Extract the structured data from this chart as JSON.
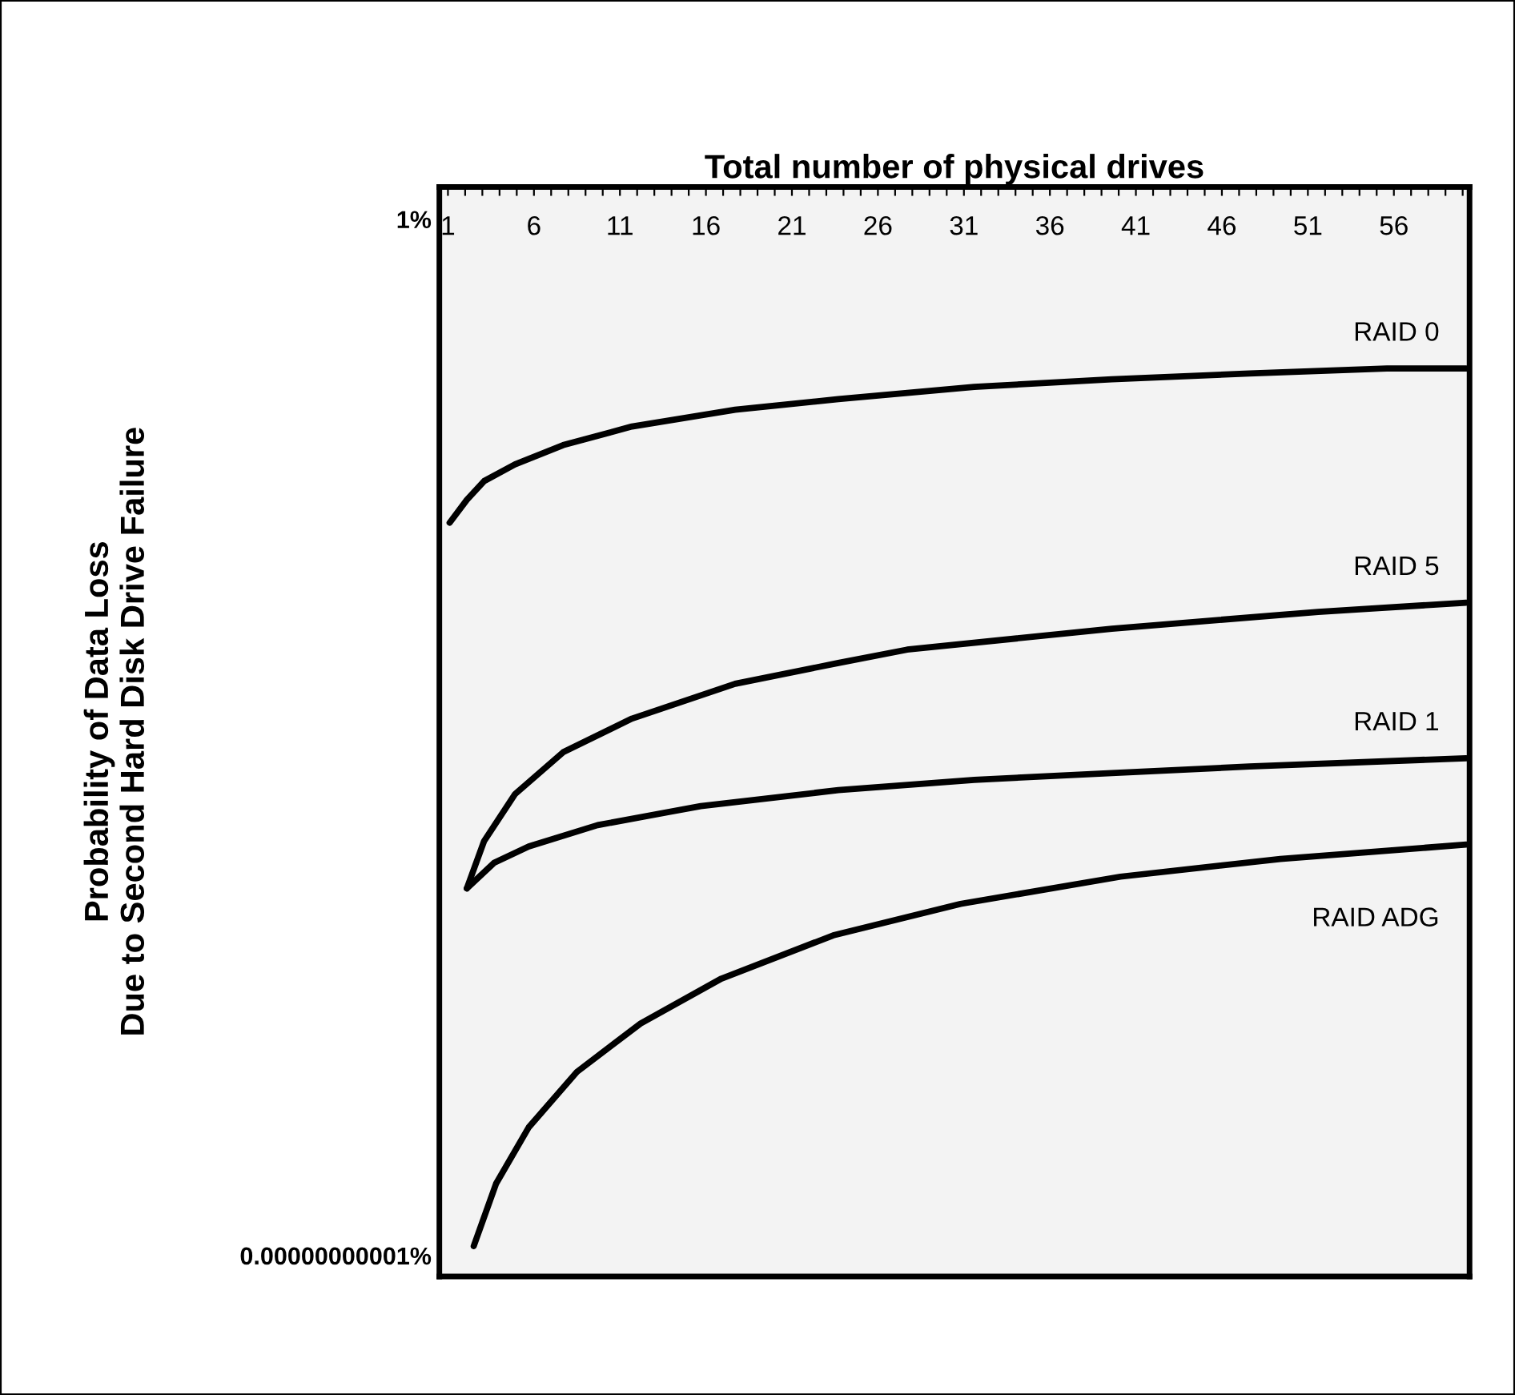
{
  "chart_data": {
    "type": "line",
    "xlabel": "Total number of physical drives",
    "ylabel": "Probability of Data Loss\nDue to Second Hard Disk Drive Failure",
    "log": "y",
    "xlim": [
      0.5,
      60.4
    ],
    "ylim": [
      6e-12,
      2.2
    ],
    "xticks": [
      {
        "value": 1,
        "label": "1"
      },
      {
        "value": 2,
        "label": null
      },
      {
        "value": 3,
        "label": null
      },
      {
        "value": 4,
        "label": null
      },
      {
        "value": 5,
        "label": null
      },
      {
        "value": 6,
        "label": "6"
      },
      {
        "value": 7,
        "label": null
      },
      {
        "value": 8,
        "label": null
      },
      {
        "value": 9,
        "label": null
      },
      {
        "value": 10,
        "label": null
      },
      {
        "value": 11,
        "label": "11"
      },
      {
        "value": 12,
        "label": null
      },
      {
        "value": 13,
        "label": null
      },
      {
        "value": 14,
        "label": null
      },
      {
        "value": 15,
        "label": null
      },
      {
        "value": 16,
        "label": "16"
      },
      {
        "value": 17,
        "label": null
      },
      {
        "value": 18,
        "label": null
      },
      {
        "value": 19,
        "label": null
      },
      {
        "value": 20,
        "label": null
      },
      {
        "value": 21,
        "label": "21"
      },
      {
        "value": 22,
        "label": null
      },
      {
        "value": 23,
        "label": null
      },
      {
        "value": 24,
        "label": null
      },
      {
        "value": 25,
        "label": null
      },
      {
        "value": 26,
        "label": "26"
      },
      {
        "value": 27,
        "label": null
      },
      {
        "value": 28,
        "label": null
      },
      {
        "value": 29,
        "label": null
      },
      {
        "value": 30,
        "label": null
      },
      {
        "value": 31,
        "label": "31"
      },
      {
        "value": 32,
        "label": null
      },
      {
        "value": 33,
        "label": null
      },
      {
        "value": 34,
        "label": null
      },
      {
        "value": 35,
        "label": null
      },
      {
        "value": 36,
        "label": "36"
      },
      {
        "value": 37,
        "label": null
      },
      {
        "value": 38,
        "label": null
      },
      {
        "value": 39,
        "label": null
      },
      {
        "value": 40,
        "label": null
      },
      {
        "value": 41,
        "label": "41"
      },
      {
        "value": 42,
        "label": null
      },
      {
        "value": 43,
        "label": null
      },
      {
        "value": 44,
        "label": null
      },
      {
        "value": 45,
        "label": null
      },
      {
        "value": 46,
        "label": "46"
      },
      {
        "value": 47,
        "label": null
      },
      {
        "value": 48,
        "label": null
      },
      {
        "value": 49,
        "label": null
      },
      {
        "value": 50,
        "label": null
      },
      {
        "value": 51,
        "label": "51"
      },
      {
        "value": 52,
        "label": null
      },
      {
        "value": 53,
        "label": null
      },
      {
        "value": 54,
        "label": null
      },
      {
        "value": 55,
        "label": null
      },
      {
        "value": 56,
        "label": "56"
      },
      {
        "value": 57,
        "label": null
      },
      {
        "value": 58,
        "label": null
      },
      {
        "value": 59,
        "label": null
      },
      {
        "value": 60,
        "label": null
      }
    ],
    "yticks": [
      {
        "value": 1,
        "label": "1%"
      },
      {
        "value": 1e-11,
        "label": "0.00000000001%"
      }
    ],
    "grid": false,
    "legend": false,
    "marker": "none",
    "line_style": "solid",
    "series": [
      {
        "name": "RAID 0",
        "color": "#000000",
        "x": [
          1.1,
          2.1,
          3.1,
          4.9,
          7.7,
          11.7,
          17.7,
          23.7,
          31.6,
          39.6,
          47.6,
          55.6,
          60.2
        ],
        "values": [
          0.0006,
          0.00105,
          0.00166,
          0.0025,
          0.004,
          0.0063,
          0.0095,
          0.0123,
          0.0166,
          0.02,
          0.023,
          0.026,
          0.026
        ]
      },
      {
        "name": "RAID 5",
        "color": "#000000",
        "x": [
          2.1,
          3.1,
          4.9,
          7.7,
          11.7,
          17.7,
          23.7,
          27.7,
          39.6,
          51.6,
          60.2
        ],
        "values": [
          7.9e-08,
          2.5e-07,
          7.9e-07,
          2.2e-06,
          5e-06,
          1.17e-05,
          1.95e-05,
          2.7e-05,
          4.5e-05,
          6.8e-05,
          8.5e-05
        ]
      },
      {
        "name": "RAID 1",
        "color": "#000000",
        "x": [
          2.1,
          3.7,
          5.7,
          9.7,
          15.7,
          23.7,
          31.6,
          39.6,
          47.6,
          60.2
        ],
        "values": [
          7.9e-08,
          1.48e-07,
          2.2e-07,
          3.7e-07,
          5.9e-07,
          8.7e-07,
          1.12e-06,
          1.32e-06,
          1.55e-06,
          1.9e-06
        ]
      },
      {
        "name": "RAID ADG",
        "color": "#000000",
        "x": [
          2.5,
          3.8,
          5.7,
          8.5,
          12.2,
          16.9,
          23.4,
          30.8,
          40.1,
          49.4,
          60.2
        ],
        "values": [
          1.26e-11,
          5.8e-11,
          2.3e-10,
          8.9e-10,
          2.9e-09,
          8.7e-09,
          2.5e-08,
          5.4e-08,
          1.05e-07,
          1.62e-07,
          2.3e-07
        ]
      }
    ]
  }
}
